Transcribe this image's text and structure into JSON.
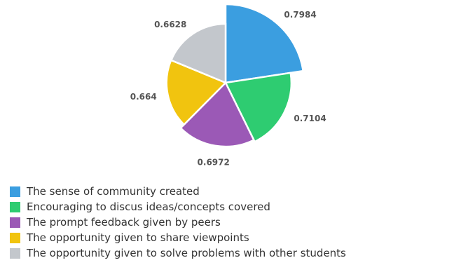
{
  "chart_data": {
    "type": "pie",
    "variant": "variable-radius",
    "title": "",
    "categories": [
      "The sense of community created",
      "Encouraging to discus ideas/concepts covered",
      "The prompt feedback given by peers",
      "The opportunity given to share viewpoints",
      "The opportunity given to solve problems with other students"
    ],
    "values": [
      0.7984,
      0.7104,
      0.6972,
      0.664,
      0.6628
    ],
    "value_labels": [
      "0.7984",
      "0.7104",
      "0.6972",
      "0.664",
      "0.6628"
    ],
    "colors": [
      "#3b9ee0",
      "#2ecc71",
      "#9b59b6",
      "#f1c40f",
      "#c3c7cc"
    ],
    "start_angle_deg": 0,
    "direction": "clockwise",
    "legend_position": "bottom-left",
    "data_labels": "outside"
  }
}
